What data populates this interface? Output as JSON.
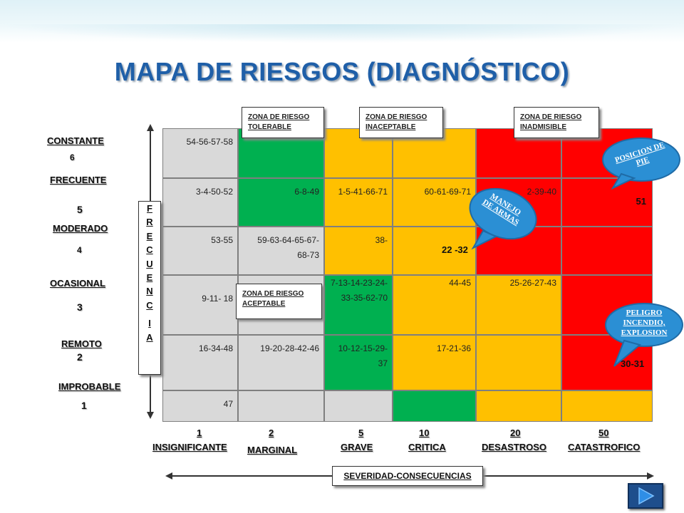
{
  "title": "MAPA DE RIESGOS (DIAGNÓSTICO)",
  "zones": {
    "tolerable": "ZONA DE RIESGO TOLERABLE",
    "inaceptable": "ZONA DE RIESGO INACEPTABLE",
    "inadmisible": "ZONA DE RIESGO INADMISIBLE",
    "aceptable": "ZONA DE RIESGO ACEPTABLE"
  },
  "rows": {
    "constante": "CONSTANTE",
    "n6": "6",
    "frecuente": "FRECUENTE",
    "n5": "5",
    "moderado": "MODERADO",
    "n4": "4",
    "ocasional": "OCASIONAL",
    "n3": "3",
    "remoto": "REMOTO",
    "n2": "2",
    "improbable": "IMPROBABLE",
    "n1": "1"
  },
  "frequency_letters": [
    "F",
    "R",
    "E",
    "C",
    "U",
    "E",
    "N",
    "C",
    "I",
    "A"
  ],
  "columns": {
    "n1": "1",
    "insignificante": "INSIGNIFICANTE",
    "n2": "2",
    "marginal": "MARGINAL",
    "n5": "5",
    "grave": "GRAVE",
    "n10": "10",
    "critica": "CRITICA",
    "n20": "20",
    "desastroso": "DESASTROSO",
    "n50": "50",
    "catastrofico": "CATASTROFICO"
  },
  "severity_label": "SEVERIDAD-CONSECUENCIAS",
  "cells": {
    "r6c1": "54-56-57-58",
    "r5c1": "3-4-50-52",
    "r5c2": "6-8-49",
    "r5c3": "1-5-41-66-71",
    "r5c4": "60-61-69-71",
    "r5c5": "2-39-40",
    "r5c6": "51",
    "r4c1": "53-55",
    "r4c2": "59-63-64-65-67-68-73",
    "r4c3": "38-",
    "r4c4": "22 -32",
    "r3c1": "9-11- 18",
    "r3c3": "7-13-14-23-24-33-35-62-70",
    "r3c4": "44-45",
    "r3c5": "25-26-27-43",
    "r2c1": "16-34-48",
    "r2c2": "19-20-28-42-46",
    "r2c3": "10-12-15-29-37",
    "r2c4": "17-21-36",
    "r2c6": "30-31",
    "r1c1": "47"
  },
  "bubbles": {
    "posicion": "POSICION DE PIE",
    "manejo": "MANEJO DE ARMAS",
    "peligro": "PELIGRO INCENDIO, EXPLOSION"
  },
  "colors": {
    "title": "#1f5fa8",
    "gray": "#d9d9d9",
    "green": "#00b050",
    "yellow": "#ffc000",
    "red": "#ff0000",
    "bubble": "#2b8fd4"
  },
  "icons": {
    "next": "play-next-icon"
  }
}
